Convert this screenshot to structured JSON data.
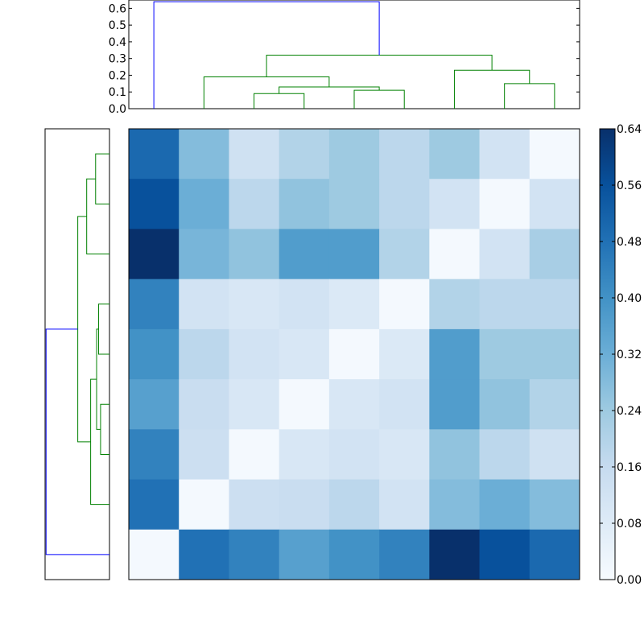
{
  "chart_data": [
    {
      "type": "heatmap",
      "title": "",
      "xlabel": "",
      "ylabel": "",
      "grid": false,
      "colormap": [
        "#f7fbff",
        "#deebf7",
        "#c6dbef",
        "#9ecae1",
        "#6baed6",
        "#4292c6",
        "#2171b5",
        "#08519c",
        "#08306b"
      ],
      "vmin": 0.0,
      "vmax": 0.64,
      "colorbar_ticks": [
        "0.00",
        "0.08",
        "0.16",
        "0.24",
        "0.32",
        "0.40",
        "0.48",
        "0.56",
        "0.64"
      ],
      "matrix": [
        [
          0.5,
          0.28,
          0.13,
          0.2,
          0.24,
          0.18,
          0.24,
          0.12,
          0.01
        ],
        [
          0.56,
          0.32,
          0.18,
          0.26,
          0.24,
          0.18,
          0.12,
          0.01,
          0.12
        ],
        [
          0.64,
          0.3,
          0.26,
          0.37,
          0.37,
          0.2,
          0.01,
          0.12,
          0.22
        ],
        [
          0.44,
          0.12,
          0.1,
          0.12,
          0.09,
          0.01,
          0.2,
          0.18,
          0.18
        ],
        [
          0.4,
          0.18,
          0.12,
          0.1,
          0.01,
          0.09,
          0.37,
          0.24,
          0.24
        ],
        [
          0.36,
          0.15,
          0.1,
          0.01,
          0.1,
          0.12,
          0.37,
          0.26,
          0.2
        ],
        [
          0.44,
          0.14,
          0.01,
          0.1,
          0.12,
          0.1,
          0.26,
          0.18,
          0.13
        ],
        [
          0.48,
          0.01,
          0.14,
          0.15,
          0.18,
          0.12,
          0.28,
          0.32,
          0.28
        ],
        [
          0.01,
          0.48,
          0.44,
          0.36,
          0.4,
          0.44,
          0.64,
          0.56,
          0.5
        ]
      ]
    },
    {
      "type": "dendrogram",
      "orientation": "top",
      "ylim": [
        0.0,
        0.65
      ],
      "yticks": [
        "0.0",
        "0.1",
        "0.2",
        "0.3",
        "0.4",
        "0.5",
        "0.6"
      ],
      "leaf_count": 9,
      "colors": {
        "above_threshold": "#0000ff",
        "cluster": "#008000"
      },
      "links": [
        {
          "left": 2,
          "right": 3,
          "height": 0.09,
          "left_height": 0.0,
          "right_height": 0.0,
          "color": "cluster"
        },
        {
          "left": 4,
          "right": 5,
          "height": 0.11,
          "left_height": 0.0,
          "right_height": 0.0,
          "color": "cluster"
        },
        {
          "left": 7,
          "right": 8,
          "height": 0.15,
          "left_height": 0.0,
          "right_height": 0.0,
          "color": "cluster"
        },
        {
          "left": 2.5,
          "right": 4.5,
          "height": 0.13,
          "left_height": 0.09,
          "right_height": 0.11,
          "color": "cluster"
        },
        {
          "left": 1,
          "right": 3.5,
          "height": 0.19,
          "left_height": 0.0,
          "right_height": 0.13,
          "color": "cluster"
        },
        {
          "left": 6,
          "right": 7.5,
          "height": 0.23,
          "left_height": 0.0,
          "right_height": 0.15,
          "color": "cluster"
        },
        {
          "left": 2.25,
          "right": 6.75,
          "height": 0.32,
          "left_height": 0.19,
          "right_height": 0.23,
          "color": "cluster"
        },
        {
          "left": 0,
          "right": 4.5,
          "height": 0.64,
          "left_height": 0.0,
          "right_height": 0.32,
          "color": "above_threshold"
        }
      ]
    },
    {
      "type": "dendrogram",
      "orientation": "left",
      "leaf_count": 9,
      "xlim": [
        0.0,
        0.65
      ],
      "colors": {
        "above_threshold": "#0000ff",
        "cluster": "#008000"
      },
      "links": [
        {
          "left": 0,
          "right": 1,
          "height": 0.14,
          "left_height": 0.0,
          "right_height": 0.0,
          "color": "cluster"
        },
        {
          "left": 0.5,
          "right": 2,
          "height": 0.23,
          "left_height": 0.14,
          "right_height": 0.0,
          "color": "cluster"
        },
        {
          "left": 3,
          "right": 4,
          "height": 0.11,
          "left_height": 0.0,
          "right_height": 0.0,
          "color": "cluster"
        },
        {
          "left": 5,
          "right": 6,
          "height": 0.09,
          "left_height": 0.0,
          "right_height": 0.0,
          "color": "cluster"
        },
        {
          "left": 3.5,
          "right": 5.5,
          "height": 0.13,
          "left_height": 0.11,
          "right_height": 0.09,
          "color": "cluster"
        },
        {
          "left": 4.5,
          "right": 7,
          "height": 0.19,
          "left_height": 0.13,
          "right_height": 0.0,
          "color": "cluster"
        },
        {
          "left": 1.25,
          "right": 5.75,
          "height": 0.32,
          "left_height": 0.23,
          "right_height": 0.19,
          "color": "cluster"
        },
        {
          "left": 3.5,
          "right": 8,
          "height": 0.64,
          "left_height": 0.32,
          "right_height": 0.0,
          "color": "above_threshold"
        }
      ]
    }
  ]
}
